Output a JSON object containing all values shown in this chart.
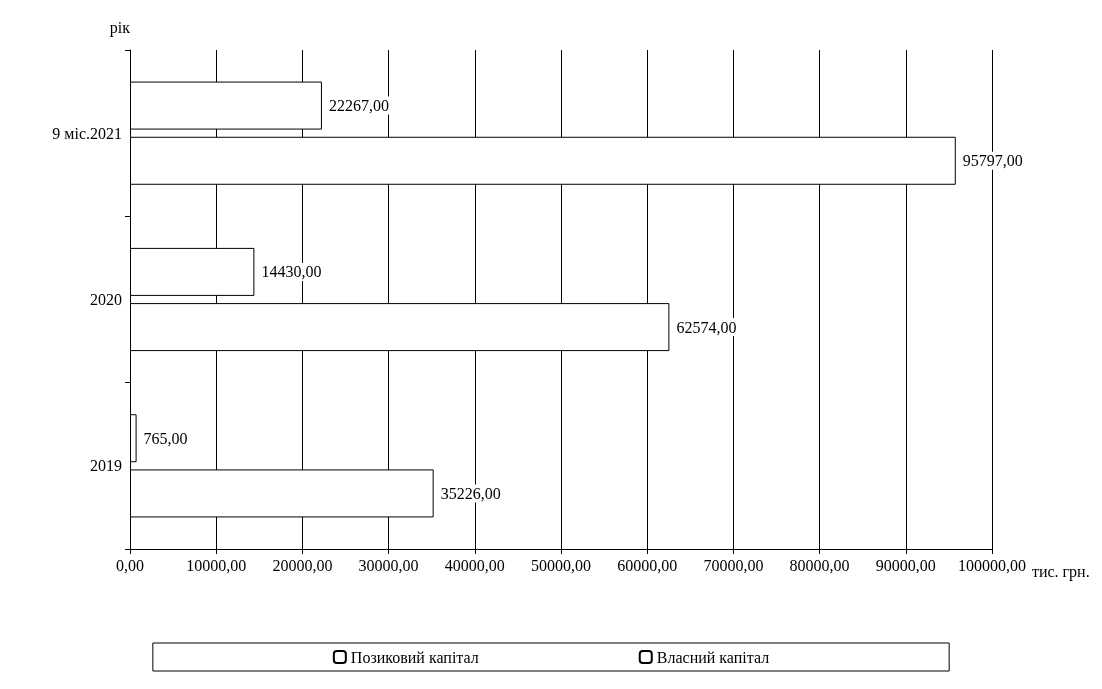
{
  "chart_data": {
    "type": "bar",
    "orientation": "horizontal",
    "xlabel": "тис. грн.",
    "ylabel": "рік",
    "categories": [
      "9 міс.2021",
      "2020",
      "2019"
    ],
    "series": [
      {
        "name": "Позиковий капітал",
        "color": "#ffffff",
        "values": [
          22267,
          14430,
          765
        ],
        "value_labels": [
          "22267,00",
          "14430,00",
          "765,00"
        ]
      },
      {
        "name": "Власний капітал",
        "color": "#ffffff",
        "values": [
          95797,
          62574,
          35226
        ],
        "value_labels": [
          "95797,00",
          "62574,00",
          "35226,00"
        ]
      }
    ],
    "xlim": [
      0,
      100000
    ],
    "xticks": [
      {
        "value": 0,
        "label": "0,00"
      },
      {
        "value": 10000,
        "label": "10000,00"
      },
      {
        "value": 20000,
        "label": "20000,00"
      },
      {
        "value": 30000,
        "label": "30000,00"
      },
      {
        "value": 40000,
        "label": "40000,00"
      },
      {
        "value": 50000,
        "label": "50000,00"
      },
      {
        "value": 60000,
        "label": "60000,00"
      },
      {
        "value": 70000,
        "label": "70000,00"
      },
      {
        "value": 80000,
        "label": "80000,00"
      },
      {
        "value": 90000,
        "label": "90000,00"
      },
      {
        "value": 100000,
        "label": "100000,00"
      }
    ],
    "grid": "x",
    "legend": "bottom"
  }
}
